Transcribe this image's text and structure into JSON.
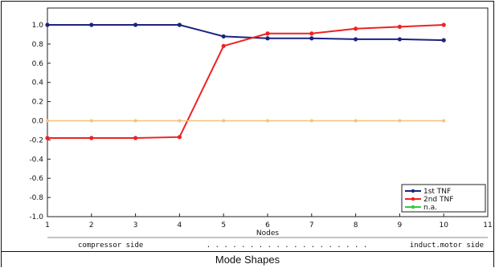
{
  "caption": "Mode Shapes",
  "chart_data": {
    "type": "line",
    "title": "",
    "xlabel": "Nodes",
    "ylabel": "",
    "xlim": [
      1,
      11
    ],
    "ylim": [
      -1.0,
      1.0
    ],
    "x_ticks": [
      1,
      2,
      3,
      4,
      5,
      6,
      7,
      8,
      9,
      10,
      11
    ],
    "y_ticks": [
      1.0,
      0.8,
      0.6,
      0.4,
      0.2,
      0.0,
      -0.2,
      -0.4,
      -0.6,
      -0.8,
      -1.0
    ],
    "y_tick_labels": [
      "1.0",
      "0.8",
      "0.6",
      "0.4",
      "0.2",
      "0.0",
      "-0.2",
      "-0.4",
      "-0.6",
      "-0.8",
      "-1.0"
    ],
    "grid": false,
    "x": [
      1,
      2,
      3,
      4,
      5,
      6,
      7,
      8,
      9,
      10
    ],
    "series": [
      {
        "name": "1st TNF",
        "color": "#1a237e",
        "values": [
          1.0,
          1.0,
          1.0,
          1.0,
          0.88,
          0.86,
          0.86,
          0.85,
          0.85,
          0.84
        ]
      },
      {
        "name": "2nd TNF",
        "color": "#ee2222",
        "values": [
          -0.18,
          -0.18,
          -0.18,
          -0.17,
          0.78,
          0.91,
          0.91,
          0.96,
          0.98,
          1.0
        ]
      },
      {
        "name": "n.a.",
        "color": "#2ecc40",
        "values": [
          0.0,
          0.0,
          0.0,
          0.0,
          0.0,
          0.0,
          0.0,
          0.0,
          0.0,
          0.0
        ]
      }
    ],
    "zero_line_color": "#f5c27a",
    "legend_position": "bottom-right",
    "footer_left": "compressor side",
    "footer_dots": ". . . . . . . . . . . . . . . . . . .",
    "footer_right": "induct.motor side"
  }
}
